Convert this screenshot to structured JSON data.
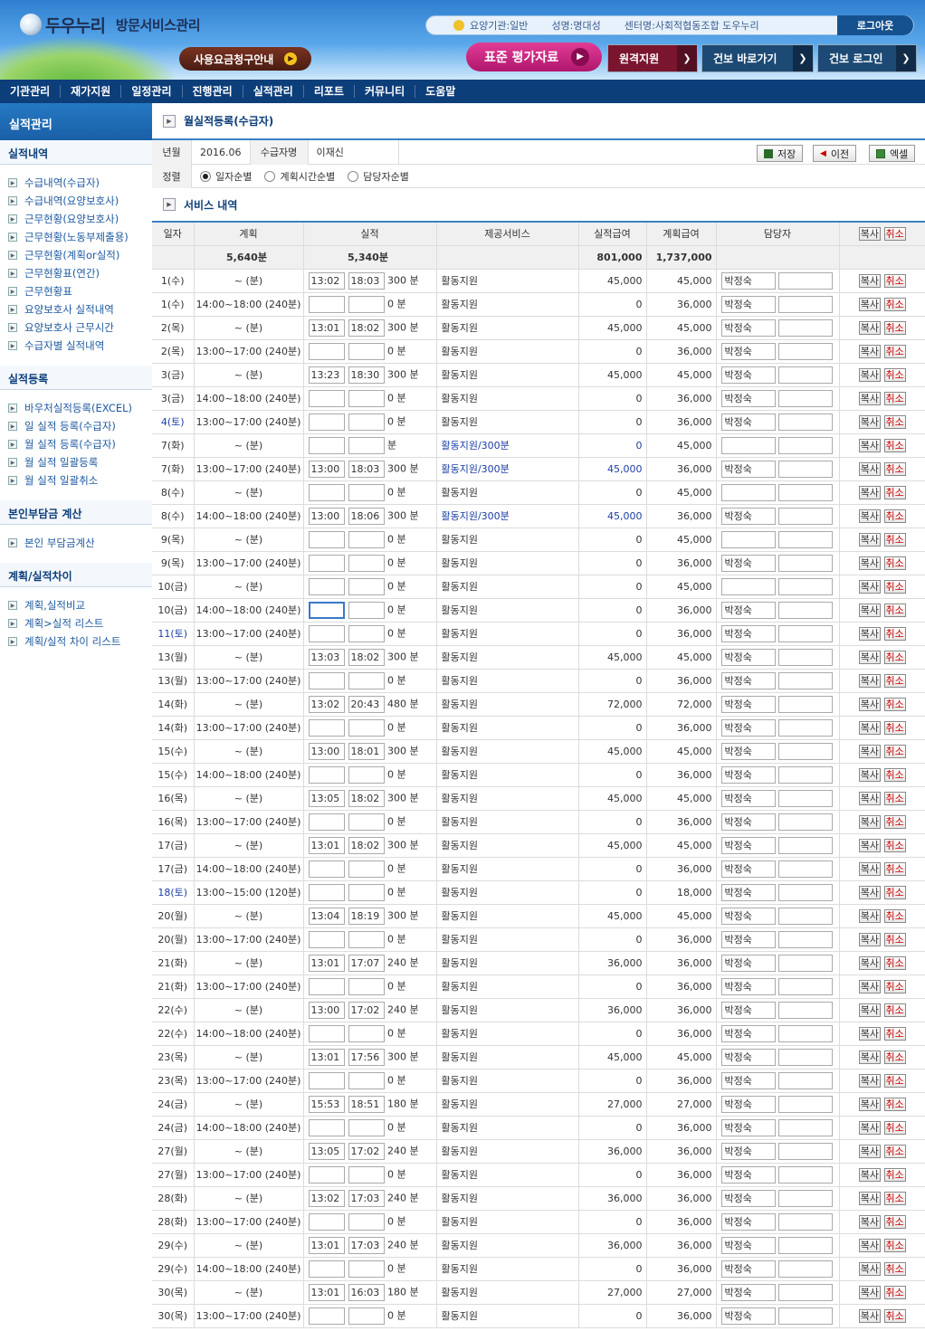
{
  "header": {
    "brand": "두우누리",
    "subtitle": "방문서비스관리",
    "info": {
      "org_type": "요양기관:일반",
      "name": "성명:명대성",
      "center": "센터명:사회적협동조합 도우누리"
    },
    "logout_label": "로그아웃",
    "fee_button": "사용요금청구안내",
    "eval_button": "표준 평가자료",
    "remote_button": "원격지원",
    "health_button": "건보 바로가기",
    "health_login_button": "건보 로그인"
  },
  "nav": [
    "기관관리",
    "재가지원",
    "일정관리",
    "진행관리",
    "실적관리",
    "리포트",
    "커뮤니티",
    "도움말"
  ],
  "sidebar": {
    "title": "실적관리",
    "sections": [
      {
        "title": "실적내역",
        "items": [
          "수급내역(수급자)",
          "수급내역(요양보호사)",
          "근무현황(요양보호사)",
          "근무현황(노동부제출용)",
          "근무현황(계획or실적)",
          "근무현황표(연간)",
          "근무현황표",
          "요양보호사 실적내역",
          "요양보호사 근무시간",
          "수급자별 실적내역"
        ]
      },
      {
        "title": "실적등록",
        "items": [
          "바우처실적등록(EXCEL)",
          "일 실적 등록(수급자)",
          "월 실적 등록(수급자)",
          "월 실적 일괄등록",
          "월 실적 일괄취소"
        ]
      },
      {
        "title": "본인부담금 계산",
        "items": [
          "본인 부담금계산"
        ]
      },
      {
        "title": "계획/실적차이",
        "items": [
          "계획,실적비교",
          "계획>실적 리스트",
          "계획/실적 차이 리스트"
        ]
      }
    ]
  },
  "main": {
    "page_title": "월실적등록(수급자)",
    "filter": {
      "ym_label": "년월",
      "ym_value": "2016.06",
      "recipient_label": "수급자명",
      "recipient_value": "이재신",
      "sort_label": "정렬",
      "sort_options": [
        "일자순별",
        "계획시간순별",
        "담당자순별"
      ],
      "sort_selected": "일자순별",
      "save": "저장",
      "prev": "이전",
      "excel": "엑셀"
    },
    "service_title": "서비스 내역",
    "columns": [
      "일자",
      "계획",
      "실적",
      "제공서비스",
      "실적급여",
      "계획급여",
      "담당자"
    ],
    "copy_label": "복사",
    "cancel_label": "취소",
    "totals": {
      "plan": "5,640분",
      "actual": "5,340분",
      "actual_pay": "801,000",
      "plan_pay": "1,737,000"
    },
    "rows": [
      {
        "date": "1(수)",
        "plan": "~ (분)",
        "start": "13:02",
        "end": "18:03",
        "min": "300 분",
        "service": "활동지원",
        "actual_pay": "45,000",
        "plan_pay": "45,000",
        "staff": "박정숙"
      },
      {
        "date": "1(수)",
        "plan": "14:00~18:00 (240분)",
        "start": "",
        "end": "",
        "min": "0 분",
        "service": "활동지원",
        "actual_pay": "0",
        "plan_pay": "36,000",
        "staff": "박정숙"
      },
      {
        "date": "2(목)",
        "plan": "~ (분)",
        "start": "13:01",
        "end": "18:02",
        "min": "300 분",
        "service": "활동지원",
        "actual_pay": "45,000",
        "plan_pay": "45,000",
        "staff": "박정숙"
      },
      {
        "date": "2(목)",
        "plan": "13:00~17:00 (240분)",
        "start": "",
        "end": "",
        "min": "0 분",
        "service": "활동지원",
        "actual_pay": "0",
        "plan_pay": "36,000",
        "staff": "박정숙"
      },
      {
        "date": "3(금)",
        "plan": "~ (분)",
        "start": "13:23",
        "end": "18:30",
        "min": "300 분",
        "service": "활동지원",
        "actual_pay": "45,000",
        "plan_pay": "45,000",
        "staff": "박정숙"
      },
      {
        "date": "3(금)",
        "plan": "14:00~18:00 (240분)",
        "start": "",
        "end": "",
        "min": "0 분",
        "service": "활동지원",
        "actual_pay": "0",
        "plan_pay": "36,000",
        "staff": "박정숙"
      },
      {
        "date": "4(토)",
        "plan": "13:00~17:00 (240분)",
        "start": "",
        "end": "",
        "min": "0 분",
        "service": "활동지원",
        "actual_pay": "0",
        "plan_pay": "36,000",
        "staff": "박정숙",
        "date_blue": true
      },
      {
        "date": "7(화)",
        "plan": "~ (분)",
        "start": "",
        "end": "",
        "min": "분",
        "service": "활동지원/300분",
        "actual_pay": "0",
        "plan_pay": "45,000",
        "staff": "",
        "svc_blue": true
      },
      {
        "date": "7(화)",
        "plan": "13:00~17:00 (240분)",
        "start": "13:00",
        "end": "18:03",
        "min": "300 분",
        "service": "활동지원/300분",
        "actual_pay": "45,000",
        "plan_pay": "36,000",
        "staff": "박정숙",
        "svc_blue": true
      },
      {
        "date": "8(수)",
        "plan": "~ (분)",
        "start": "",
        "end": "",
        "min": "0 분",
        "service": "활동지원",
        "actual_pay": "0",
        "plan_pay": "45,000",
        "staff": ""
      },
      {
        "date": "8(수)",
        "plan": "14:00~18:00 (240분)",
        "start": "13:00",
        "end": "18:06",
        "min": "300 분",
        "service": "활동지원/300분",
        "actual_pay": "45,000",
        "plan_pay": "36,000",
        "staff": "박정숙",
        "svc_blue": true
      },
      {
        "date": "9(목)",
        "plan": "~ (분)",
        "start": "",
        "end": "",
        "min": "0 분",
        "service": "활동지원",
        "actual_pay": "0",
        "plan_pay": "45,000",
        "staff": ""
      },
      {
        "date": "9(목)",
        "plan": "13:00~17:00 (240분)",
        "start": "",
        "end": "",
        "min": "0 분",
        "service": "활동지원",
        "actual_pay": "0",
        "plan_pay": "36,000",
        "staff": "박정숙"
      },
      {
        "date": "10(금)",
        "plan": "~ (분)",
        "start": "",
        "end": "",
        "min": "0 분",
        "service": "활동지원",
        "actual_pay": "0",
        "plan_pay": "45,000",
        "staff": ""
      },
      {
        "date": "10(금)",
        "plan": "14:00~18:00 (240분)",
        "start": "",
        "end": "",
        "min": "0 분",
        "service": "활동지원",
        "actual_pay": "0",
        "plan_pay": "36,000",
        "staff": "박정숙",
        "focus": true
      },
      {
        "date": "11(토)",
        "plan": "13:00~17:00 (240분)",
        "start": "",
        "end": "",
        "min": "0 분",
        "service": "활동지원",
        "actual_pay": "0",
        "plan_pay": "36,000",
        "staff": "박정숙",
        "date_blue": true
      },
      {
        "date": "13(월)",
        "plan": "~ (분)",
        "start": "13:03",
        "end": "18:02",
        "min": "300 분",
        "service": "활동지원",
        "actual_pay": "45,000",
        "plan_pay": "45,000",
        "staff": "박정숙"
      },
      {
        "date": "13(월)",
        "plan": "13:00~17:00 (240분)",
        "start": "",
        "end": "",
        "min": "0 분",
        "service": "활동지원",
        "actual_pay": "0",
        "plan_pay": "36,000",
        "staff": "박정숙"
      },
      {
        "date": "14(화)",
        "plan": "~ (분)",
        "start": "13:02",
        "end": "20:43",
        "min": "480 분",
        "service": "활동지원",
        "actual_pay": "72,000",
        "plan_pay": "72,000",
        "staff": "박정숙"
      },
      {
        "date": "14(화)",
        "plan": "13:00~17:00 (240분)",
        "start": "",
        "end": "",
        "min": "0 분",
        "service": "활동지원",
        "actual_pay": "0",
        "plan_pay": "36,000",
        "staff": "박정숙"
      },
      {
        "date": "15(수)",
        "plan": "~ (분)",
        "start": "13:00",
        "end": "18:01",
        "min": "300 분",
        "service": "활동지원",
        "actual_pay": "45,000",
        "plan_pay": "45,000",
        "staff": "박정숙"
      },
      {
        "date": "15(수)",
        "plan": "14:00~18:00 (240분)",
        "start": "",
        "end": "",
        "min": "0 분",
        "service": "활동지원",
        "actual_pay": "0",
        "plan_pay": "36,000",
        "staff": "박정숙"
      },
      {
        "date": "16(목)",
        "plan": "~ (분)",
        "start": "13:05",
        "end": "18:02",
        "min": "300 분",
        "service": "활동지원",
        "actual_pay": "45,000",
        "plan_pay": "45,000",
        "staff": "박정숙"
      },
      {
        "date": "16(목)",
        "plan": "13:00~17:00 (240분)",
        "start": "",
        "end": "",
        "min": "0 분",
        "service": "활동지원",
        "actual_pay": "0",
        "plan_pay": "36,000",
        "staff": "박정숙"
      },
      {
        "date": "17(금)",
        "plan": "~ (분)",
        "start": "13:01",
        "end": "18:02",
        "min": "300 분",
        "service": "활동지원",
        "actual_pay": "45,000",
        "plan_pay": "45,000",
        "staff": "박정숙"
      },
      {
        "date": "17(금)",
        "plan": "14:00~18:00 (240분)",
        "start": "",
        "end": "",
        "min": "0 분",
        "service": "활동지원",
        "actual_pay": "0",
        "plan_pay": "36,000",
        "staff": "박정숙"
      },
      {
        "date": "18(토)",
        "plan": "13:00~15:00 (120분)",
        "start": "",
        "end": "",
        "min": "0 분",
        "service": "활동지원",
        "actual_pay": "0",
        "plan_pay": "18,000",
        "staff": "박정숙",
        "date_blue": true
      },
      {
        "date": "20(월)",
        "plan": "~ (분)",
        "start": "13:04",
        "end": "18:19",
        "min": "300 분",
        "service": "활동지원",
        "actual_pay": "45,000",
        "plan_pay": "45,000",
        "staff": "박정숙"
      },
      {
        "date": "20(월)",
        "plan": "13:00~17:00 (240분)",
        "start": "",
        "end": "",
        "min": "0 분",
        "service": "활동지원",
        "actual_pay": "0",
        "plan_pay": "36,000",
        "staff": "박정숙"
      },
      {
        "date": "21(화)",
        "plan": "~ (분)",
        "start": "13:01",
        "end": "17:07",
        "min": "240 분",
        "service": "활동지원",
        "actual_pay": "36,000",
        "plan_pay": "36,000",
        "staff": "박정숙"
      },
      {
        "date": "21(화)",
        "plan": "13:00~17:00 (240분)",
        "start": "",
        "end": "",
        "min": "0 분",
        "service": "활동지원",
        "actual_pay": "0",
        "plan_pay": "36,000",
        "staff": "박정숙"
      },
      {
        "date": "22(수)",
        "plan": "~ (분)",
        "start": "13:00",
        "end": "17:02",
        "min": "240 분",
        "service": "활동지원",
        "actual_pay": "36,000",
        "plan_pay": "36,000",
        "staff": "박정숙"
      },
      {
        "date": "22(수)",
        "plan": "14:00~18:00 (240분)",
        "start": "",
        "end": "",
        "min": "0 분",
        "service": "활동지원",
        "actual_pay": "0",
        "plan_pay": "36,000",
        "staff": "박정숙"
      },
      {
        "date": "23(목)",
        "plan": "~ (분)",
        "start": "13:01",
        "end": "17:56",
        "min": "300 분",
        "service": "활동지원",
        "actual_pay": "45,000",
        "plan_pay": "45,000",
        "staff": "박정숙"
      },
      {
        "date": "23(목)",
        "plan": "13:00~17:00 (240분)",
        "start": "",
        "end": "",
        "min": "0 분",
        "service": "활동지원",
        "actual_pay": "0",
        "plan_pay": "36,000",
        "staff": "박정숙"
      },
      {
        "date": "24(금)",
        "plan": "~ (분)",
        "start": "15:53",
        "end": "18:51",
        "min": "180 분",
        "service": "활동지원",
        "actual_pay": "27,000",
        "plan_pay": "27,000",
        "staff": "박정숙"
      },
      {
        "date": "24(금)",
        "plan": "14:00~18:00 (240분)",
        "start": "",
        "end": "",
        "min": "0 분",
        "service": "활동지원",
        "actual_pay": "0",
        "plan_pay": "36,000",
        "staff": "박정숙"
      },
      {
        "date": "27(월)",
        "plan": "~ (분)",
        "start": "13:05",
        "end": "17:02",
        "min": "240 분",
        "service": "활동지원",
        "actual_pay": "36,000",
        "plan_pay": "36,000",
        "staff": "박정숙"
      },
      {
        "date": "27(월)",
        "plan": "13:00~17:00 (240분)",
        "start": "",
        "end": "",
        "min": "0 분",
        "service": "활동지원",
        "actual_pay": "0",
        "plan_pay": "36,000",
        "staff": "박정숙"
      },
      {
        "date": "28(화)",
        "plan": "~ (분)",
        "start": "13:02",
        "end": "17:03",
        "min": "240 분",
        "service": "활동지원",
        "actual_pay": "36,000",
        "plan_pay": "36,000",
        "staff": "박정숙"
      },
      {
        "date": "28(화)",
        "plan": "13:00~17:00 (240분)",
        "start": "",
        "end": "",
        "min": "0 분",
        "service": "활동지원",
        "actual_pay": "0",
        "plan_pay": "36,000",
        "staff": "박정숙"
      },
      {
        "date": "29(수)",
        "plan": "~ (분)",
        "start": "13:01",
        "end": "17:03",
        "min": "240 분",
        "service": "활동지원",
        "actual_pay": "36,000",
        "plan_pay": "36,000",
        "staff": "박정숙"
      },
      {
        "date": "29(수)",
        "plan": "14:00~18:00 (240분)",
        "start": "",
        "end": "",
        "min": "0 분",
        "service": "활동지원",
        "actual_pay": "0",
        "plan_pay": "36,000",
        "staff": "박정숙"
      },
      {
        "date": "30(목)",
        "plan": "~ (분)",
        "start": "13:01",
        "end": "16:03",
        "min": "180 분",
        "service": "활동지원",
        "actual_pay": "27,000",
        "plan_pay": "27,000",
        "staff": "박정숙"
      },
      {
        "date": "30(목)",
        "plan": "13:00~17:00 (240분)",
        "start": "",
        "end": "",
        "min": "0 분",
        "service": "활동지원",
        "actual_pay": "0",
        "plan_pay": "36,000",
        "staff": "박정숙"
      }
    ]
  },
  "colors": {
    "nav_bg": "#0c3e7a",
    "link_blue": "#1e5aa0",
    "cancel_red": "#cc0000",
    "accent_pink": "#d0257f"
  },
  "icons": {
    "save": "floppy-icon",
    "prev": "arrow-left-icon",
    "excel": "excel-icon",
    "bullet": "arrow-right-box-icon"
  }
}
